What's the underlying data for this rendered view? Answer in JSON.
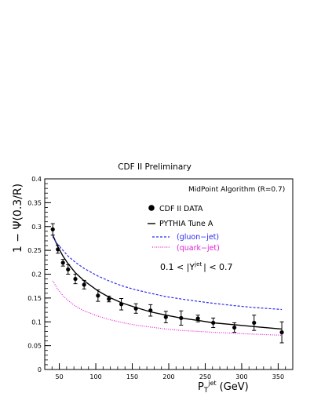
{
  "chart_data": {
    "type": "line",
    "title": "CDF II Preliminary",
    "ylabel": "1 − Ψ(0.3/R)",
    "xlabel_main": "P",
    "xlabel_sub": "T",
    "xlabel_sup": "jet",
    "xlabel_unit": "(GeV)",
    "xlim": [
      30,
      370
    ],
    "ylim": [
      0,
      0.4
    ],
    "xticks": [
      50,
      100,
      150,
      200,
      250,
      300,
      350
    ],
    "xtick_labels": [
      "50",
      "100",
      "150",
      "200",
      "250",
      "300",
      "350"
    ],
    "yticks": [
      0,
      0.05,
      0.1,
      0.15,
      0.2,
      0.25,
      0.3,
      0.35,
      0.4
    ],
    "ytick_labels": [
      "0",
      "0.05",
      "0.1",
      "0.15",
      "0.2",
      "0.25",
      "0.3",
      "0.35",
      "0.4"
    ],
    "algorithm_label": "MidPoint Algorithm (R=0.7)",
    "cut_label_prefix": "0.1 < |Y",
    "cut_label_sup": "jet",
    "cut_label_suffix": "| < 0.7",
    "data_series": {
      "name": "CDF II DATA",
      "color": "#000000",
      "points": [
        {
          "x": 41,
          "y": 0.294,
          "err": 0.012
        },
        {
          "x": 48,
          "y": 0.252,
          "err": 0.008
        },
        {
          "x": 55,
          "y": 0.224,
          "err": 0.007
        },
        {
          "x": 62,
          "y": 0.21,
          "err": 0.01
        },
        {
          "x": 72,
          "y": 0.19,
          "err": 0.01
        },
        {
          "x": 84,
          "y": 0.178,
          "err": 0.009
        },
        {
          "x": 103,
          "y": 0.155,
          "err": 0.012
        },
        {
          "x": 118,
          "y": 0.148,
          "err": 0.006
        },
        {
          "x": 135,
          "y": 0.137,
          "err": 0.012
        },
        {
          "x": 155,
          "y": 0.128,
          "err": 0.01
        },
        {
          "x": 175,
          "y": 0.124,
          "err": 0.012
        },
        {
          "x": 196,
          "y": 0.11,
          "err": 0.012
        },
        {
          "x": 217,
          "y": 0.108,
          "err": 0.015
        },
        {
          "x": 240,
          "y": 0.107,
          "err": 0.007
        },
        {
          "x": 261,
          "y": 0.098,
          "err": 0.01
        },
        {
          "x": 290,
          "y": 0.088,
          "err": 0.01
        },
        {
          "x": 317,
          "y": 0.098,
          "err": 0.016
        },
        {
          "x": 355,
          "y": 0.078,
          "err": 0.022
        }
      ]
    },
    "series": [
      {
        "name": "PYTHIA Tune A",
        "color": "#000000",
        "style": "solid",
        "x": [
          41,
          48,
          55,
          62,
          72,
          84,
          103,
          118,
          135,
          155,
          175,
          196,
          217,
          240,
          261,
          290,
          317,
          355
        ],
        "y": [
          0.282,
          0.258,
          0.238,
          0.222,
          0.203,
          0.186,
          0.165,
          0.152,
          0.14,
          0.13,
          0.121,
          0.114,
          0.108,
          0.103,
          0.098,
          0.094,
          0.09,
          0.085
        ]
      },
      {
        "name": "(gluon−jet)",
        "color": "#2a2af0",
        "style": "dashed",
        "x": [
          41,
          48,
          55,
          62,
          72,
          84,
          103,
          118,
          135,
          155,
          175,
          196,
          217,
          240,
          261,
          290,
          317,
          355
        ],
        "y": [
          0.278,
          0.262,
          0.25,
          0.238,
          0.225,
          0.212,
          0.196,
          0.186,
          0.176,
          0.167,
          0.16,
          0.153,
          0.148,
          0.143,
          0.139,
          0.134,
          0.13,
          0.126
        ]
      },
      {
        "name": "(quark−jet)",
        "color": "#e01fd8",
        "style": "dotted",
        "x": [
          41,
          48,
          55,
          62,
          72,
          84,
          103,
          118,
          135,
          155,
          175,
          196,
          217,
          240,
          261,
          290,
          317,
          355
        ],
        "y": [
          0.186,
          0.168,
          0.155,
          0.145,
          0.133,
          0.123,
          0.112,
          0.105,
          0.099,
          0.093,
          0.089,
          0.085,
          0.082,
          0.08,
          0.078,
          0.076,
          0.074,
          0.072
        ]
      }
    ]
  }
}
